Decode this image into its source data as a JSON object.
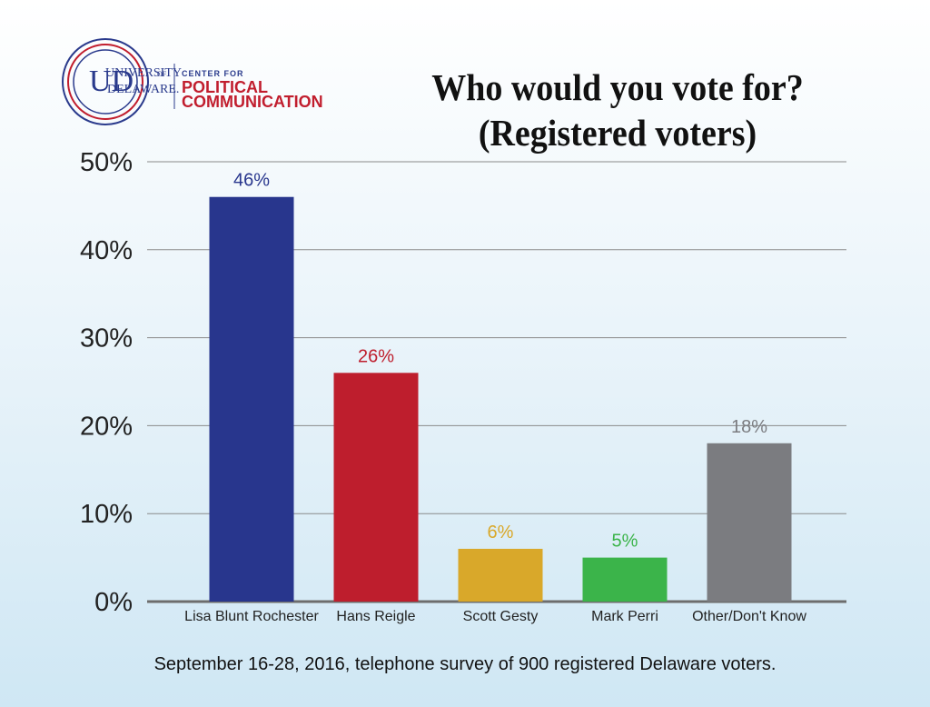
{
  "logo": {
    "mark": "UD",
    "university_line1": "UNIVERSITY",
    "university_of": "OF",
    "university_line2": "DELAWARE.",
    "center_for": "CENTER FOR",
    "political": "POLITICAL",
    "communication": "COMMUNICATION"
  },
  "title": {
    "line1": "Who would you vote for?",
    "line2": "(Registered voters)"
  },
  "footnote": "September 16-28, 2016, telephone survey of 900 registered Delaware voters.",
  "colors": {
    "Lisa Blunt Rochester": "#28368d",
    "Hans Reigle": "#be1e2d",
    "Scott Gesty": "#d9a82a",
    "Mark Perri": "#3bb44a",
    "Other/Don't Know": "#7b7c80",
    "gridline": "#8a8a8a",
    "axis": "#6d6d6d"
  },
  "chart_data": {
    "type": "bar",
    "categories": [
      "Lisa Blunt Rochester",
      "Hans Reigle",
      "Scott Gesty",
      "Mark Perri",
      "Other/Don't Know"
    ],
    "values": [
      46,
      26,
      6,
      5,
      18
    ],
    "data_labels": [
      "46%",
      "26%",
      "6%",
      "5%",
      "18%"
    ],
    "title": "Who would you vote for? (Registered voters)",
    "xlabel": "",
    "ylabel": "",
    "ylim": [
      0,
      50
    ],
    "yticks": [
      0,
      10,
      20,
      30,
      40,
      50
    ],
    "ytick_labels": [
      "0%",
      "10%",
      "20%",
      "30%",
      "40%",
      "50%"
    ],
    "grid": true,
    "legend": "none"
  }
}
